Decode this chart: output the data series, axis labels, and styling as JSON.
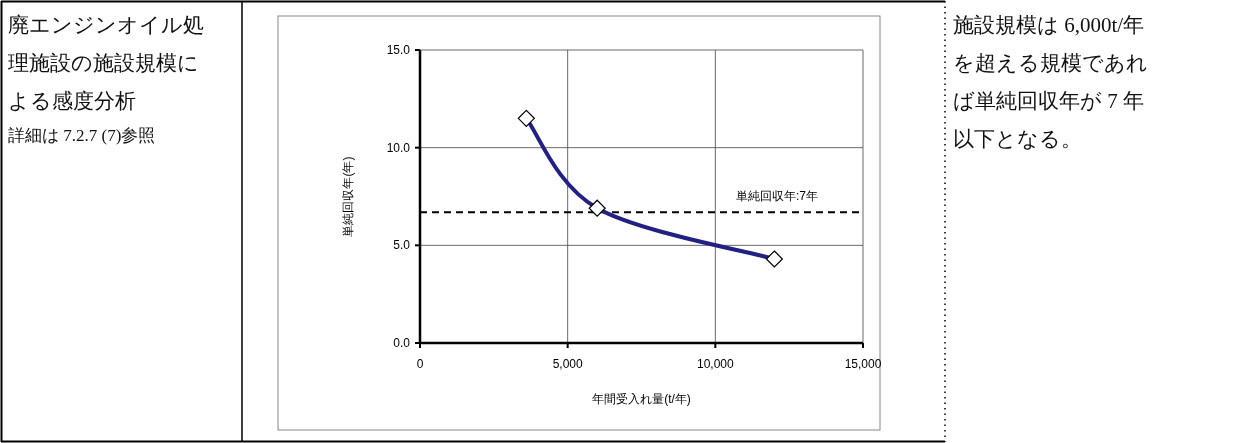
{
  "chart_data": {
    "type": "line",
    "title": "廃エンジンオイル処理施設の施設規模による感度分析",
    "annotations": [
      "詳細は 7.2.7 (7)参照",
      "施設規模は 6,000t/年を超える規模であれば単純回収年が 7 年以下となる。"
    ],
    "xlabel": "年間受入れ量(t/年)",
    "ylabel": "単純回収年(年)",
    "x": [
      3600,
      6000,
      12000
    ],
    "series": [
      {
        "color": "#1f1f8f",
        "values": [
          11.5,
          6.9,
          4.3
        ]
      }
    ],
    "xlim": [
      0,
      15000
    ],
    "xticks": [
      0,
      {
        "value": 5000,
        "label": "5,000"
      },
      {
        "value": 10000,
        "label": "10,000"
      },
      {
        "value": 15000,
        "label": "15,000"
      }
    ],
    "ylim": [
      0,
      15
    ],
    "yticks": [
      {
        "value": 0,
        "label": "0.0"
      },
      {
        "value": 5,
        "label": "5.0"
      },
      {
        "value": 10,
        "label": "10.0"
      },
      {
        "value": 15,
        "label": "15.0"
      }
    ],
    "ref_lines": [
      {
        "axis": "y",
        "value": 6.7,
        "label": "単純回収年:7年",
        "color": "#000000",
        "line_style": "dashed"
      }
    ],
    "grid": true,
    "marker": "diamond",
    "line_style": "solid"
  }
}
